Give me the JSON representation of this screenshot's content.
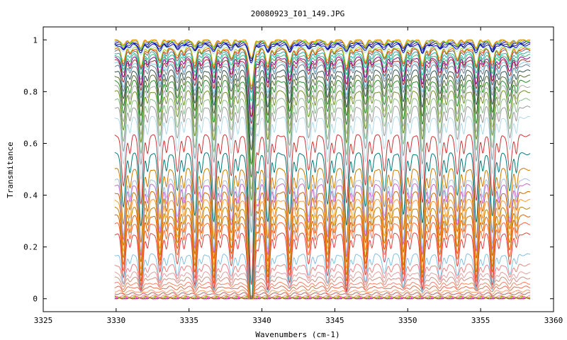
{
  "chart_data": {
    "type": "line",
    "title": "20080923_I01_149.JPG",
    "xlabel": "Wavenumbers (cm-1)",
    "ylabel": "Transmitance",
    "xlim": [
      3325,
      3360
    ],
    "ylim": [
      -0.05,
      1.05
    ],
    "x_ticks": [
      3325,
      3330,
      3335,
      3340,
      3345,
      3350,
      3355,
      3360
    ],
    "y_ticks": [
      0,
      0.2,
      0.4,
      0.6,
      0.8,
      1
    ],
    "x_tick_labels": [
      "3325",
      "3330",
      "3335",
      "3340",
      "3345",
      "3350",
      "3355",
      "3360"
    ],
    "y_tick_labels": [
      "0",
      "0.2",
      "0.4",
      "0.6",
      "0.8",
      "1"
    ],
    "x_range": [
      3329.9,
      3358.4
    ],
    "grid": false,
    "legend": "none",
    "absorption_line_positions": [
      3330.5,
      3331.7,
      3333.0,
      3334.2,
      3335.4,
      3336.7,
      3337.9,
      3339.3,
      3340.4,
      3341.9,
      3343.2,
      3344.5,
      3345.8,
      3347.1,
      3348.4,
      3349.7,
      3351.0,
      3352.2,
      3353.4,
      3354.7,
      3355.8,
      3357.0
    ],
    "broad_absorption_center": 3339.25,
    "series_baselines": [
      0.0,
      0.002,
      0.004,
      0.006,
      0.01,
      0.02,
      0.03,
      0.045,
      0.06,
      0.08,
      0.1,
      0.13,
      0.17,
      0.25,
      0.29,
      0.32,
      0.35,
      0.38,
      0.41,
      0.44,
      0.46,
      0.5,
      0.56,
      0.63,
      0.7,
      0.74,
      0.77,
      0.8,
      0.82,
      0.84,
      0.86,
      0.88,
      0.9,
      0.91,
      0.92,
      0.93,
      0.94,
      0.95,
      0.96,
      0.965,
      0.97,
      0.975,
      0.98,
      0.985,
      0.99,
      0.993,
      0.996,
      0.998,
      1.0
    ],
    "series_colors": [
      "#c00000",
      "#ff00ff",
      "#808000",
      "#a0a000",
      "#ff8080",
      "#c06060",
      "#ff9966",
      "#e07050",
      "#ff8060",
      "#d09080",
      "#e0a0a0",
      "#f08080",
      "#80c0e0",
      "#e04040",
      "#ff6633",
      "#e06000",
      "#c08000",
      "#ff9933",
      "#cc6600",
      "#cc66cc",
      "#a0c0e0",
      "#cc7700",
      "#007777",
      "#cc3333",
      "#add8e6",
      "#999999",
      "#88bb88",
      "#6b8e23",
      "#aaaaaa",
      "#228b22",
      "#556b2f",
      "#2f4f4f",
      "#708090",
      "#87ceeb",
      "#a52a2a",
      "#8b008b",
      "#3cb371",
      "#20b2aa",
      "#696969",
      "#ff4500",
      "#9acd32",
      "#b0e0e6",
      "#0000cd",
      "#191970",
      "#00008b",
      "#4169e1",
      "#daa520",
      "#32cd32",
      "#ff8c00"
    ]
  }
}
